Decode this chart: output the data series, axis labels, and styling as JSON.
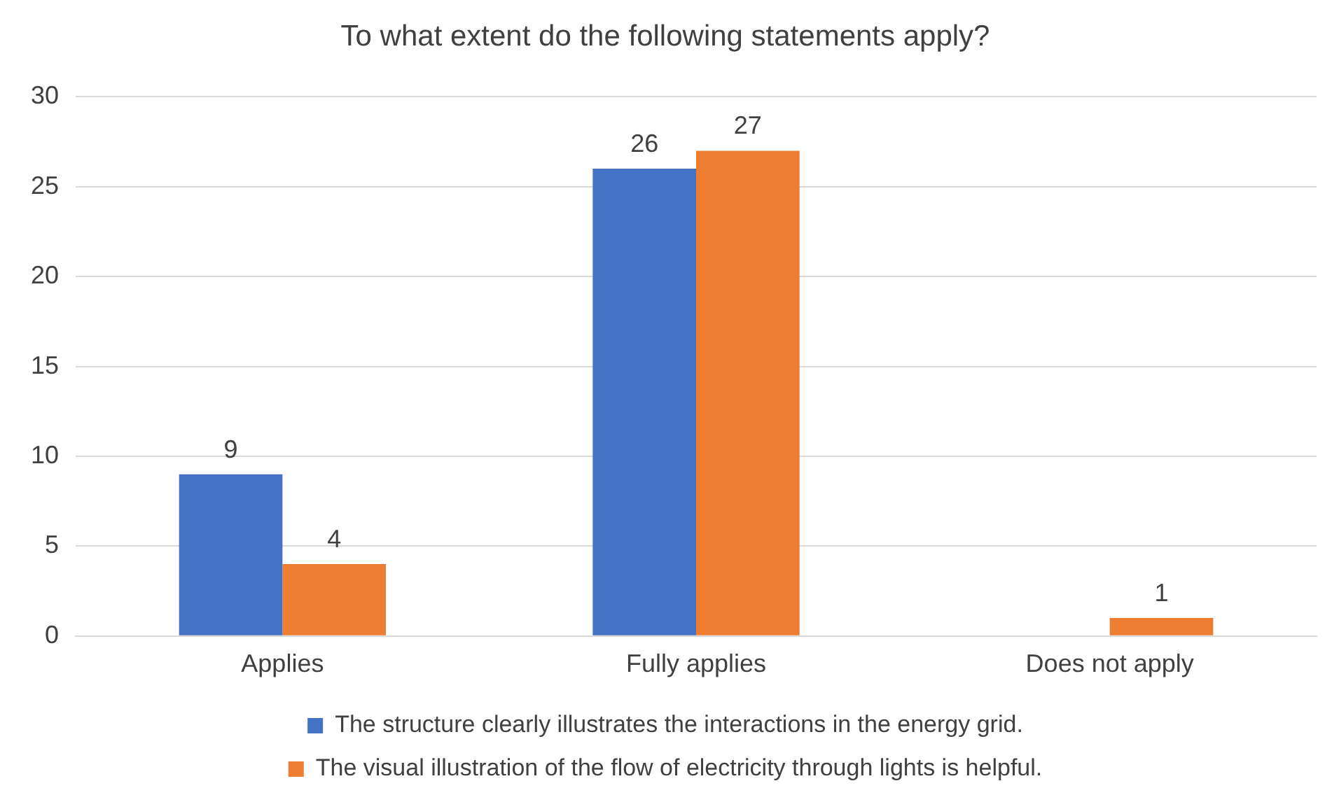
{
  "chart_data": {
    "type": "bar",
    "title": "To what extent do the following statements apply?",
    "categories": [
      "Applies",
      "Fully applies",
      "Does not apply"
    ],
    "series": [
      {
        "name": "The structure clearly illustrates the interactions in the energy grid.",
        "color": "#4472c4",
        "values": [
          9,
          26,
          0
        ],
        "value_labels": [
          "9",
          "26",
          null
        ]
      },
      {
        "name": "The visual illustration of the flow of electricity through lights is helpful.",
        "color": "#ed7d31",
        "values": [
          4,
          27,
          1
        ],
        "value_labels": [
          "4",
          "27",
          "1"
        ]
      }
    ],
    "ylim": [
      0,
      30
    ],
    "yticks": [
      0,
      5,
      10,
      15,
      20,
      25,
      30
    ],
    "grid": "y",
    "legend": "bottom"
  }
}
